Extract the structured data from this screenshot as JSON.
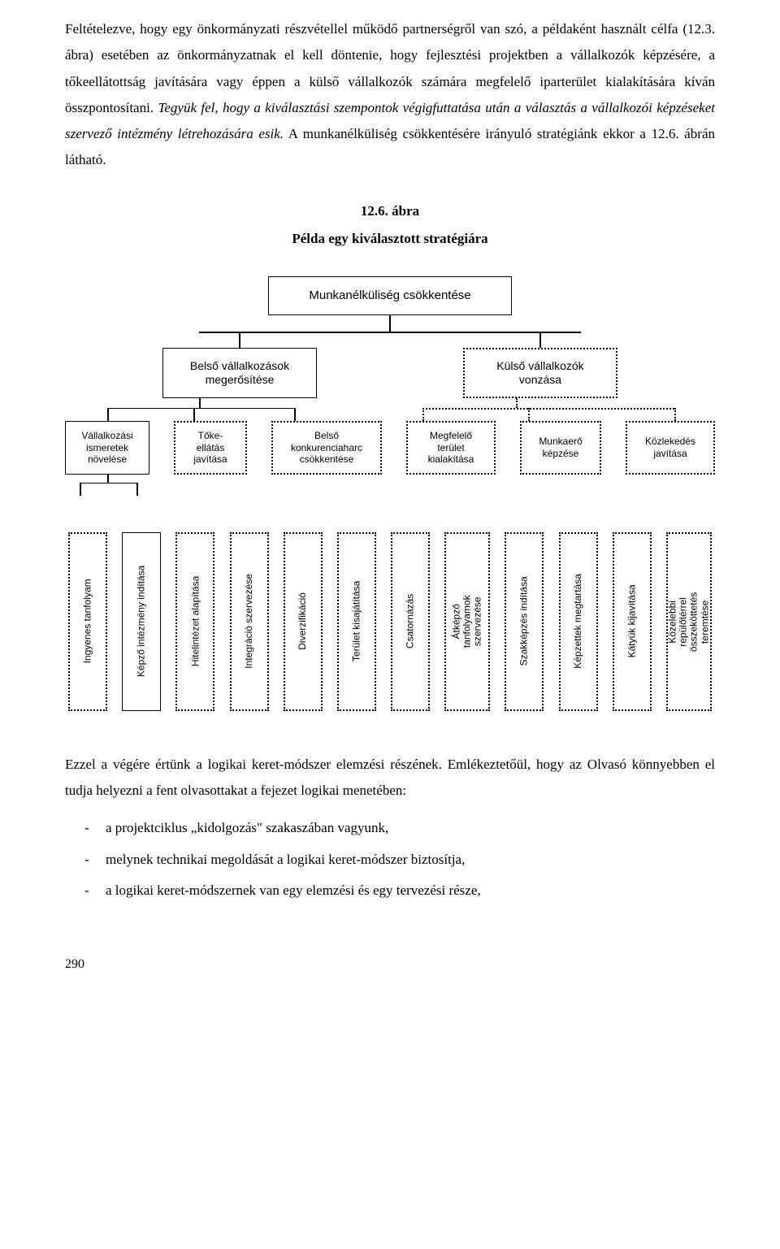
{
  "para1_before_italic": "Feltételezve, hogy egy önkormányzati részvétellel működő partnerségről van szó, a példaként használt célfa (12.3. ábra) esetében az önkormányzatnak el kell döntenie, hogy fejlesztési projektben a vállalkozók képzésére, a tőkeellátottság javítására vagy éppen a külső vállalkozók számára megfelelő iparterület kialakítására kíván összpontosítani. ",
  "para1_italic": "Tegyük fel, hogy a kiválasztási szempontok végigfuttatása után a választás a vállalkozói képzéseket szervező intézmény létrehozására esik.",
  "para1_after_italic": " A munkanélküliség csökkentésére irányuló stratégiánk ekkor a 12.6. ábrán látható.",
  "figure": {
    "number": "12.6. ábra",
    "caption": "Példa egy kiválasztott stratégiára",
    "styling": {
      "font_family": "Arial",
      "box_bg": "#ffffff",
      "border_color": "#000000",
      "solid_border_width": 1.5,
      "dotted_border_width": 2
    },
    "level1": {
      "label": "Munkanélküliség csökkentése",
      "style": "solid"
    },
    "level2": [
      {
        "id": "l2a",
        "label": "Belső vállalkozások megerősítése",
        "style": "solid"
      },
      {
        "id": "l2b",
        "label": "Külső vállalkozók vonzása",
        "style": "dotted"
      }
    ],
    "level3": [
      {
        "id": "l3a",
        "label": "Vállalkozási ismeretek növelése",
        "style": "solid",
        "parent": "l2a"
      },
      {
        "id": "l3b",
        "label": "Tőke-\nellátás javítása",
        "style": "dotted",
        "parent": "l2a"
      },
      {
        "id": "l3c",
        "label": "Belső konkurenciaharc csökkentése",
        "style": "dotted",
        "parent": "l2a"
      },
      {
        "id": "l3d",
        "label": "Megfelelő terület kialakítása",
        "style": "dotted",
        "parent": "l2b"
      },
      {
        "id": "l3e",
        "label": "Munkaerő képzése",
        "style": "dotted",
        "parent": "l2b"
      },
      {
        "id": "l3f",
        "label": "Közlekedés javítása",
        "style": "dotted",
        "parent": "l2b"
      }
    ],
    "level4": [
      {
        "id": "l4a",
        "label": "Ingyenes tanfolyam",
        "style": "dotted",
        "parent": "l3a"
      },
      {
        "id": "l4b",
        "label": "Képző intézmény indítása",
        "style": "solid",
        "parent": "l3a"
      },
      {
        "id": "l4c",
        "label": "Hitelintézet alapítása",
        "style": "dotted",
        "parent": "l3b"
      },
      {
        "id": "l4d",
        "label": "Integráció szervezése",
        "style": "dotted",
        "parent": "l3c"
      },
      {
        "id": "l4e",
        "label": "Diverzifikáció",
        "style": "dotted",
        "parent": "l3c"
      },
      {
        "id": "l4f",
        "label": "Terület kisajátítása",
        "style": "dotted",
        "parent": "l3d"
      },
      {
        "id": "l4g",
        "label": "Csatornázás",
        "style": "dotted",
        "parent": "l3d"
      },
      {
        "id": "l4h",
        "label": "Átképző tanfolyamok szervezése",
        "style": "dotted",
        "parent": "l3e",
        "multiline": true
      },
      {
        "id": "l4i",
        "label": "Szakképzés indítása",
        "style": "dotted",
        "parent": "l3e"
      },
      {
        "id": "l4j",
        "label": "Képzettek megtartása",
        "style": "dotted",
        "parent": "l3e"
      },
      {
        "id": "l4k",
        "label": "Kátyúk kijavítása",
        "style": "dotted",
        "parent": "l3f"
      },
      {
        "id": "l4l",
        "label": "Közelebbi repülőtérrel összeköttetés teremtése",
        "style": "dotted",
        "parent": "l3f",
        "multiline": true
      }
    ]
  },
  "closing_intro": "Ezzel a végére értünk a logikai keret-módszer elemzési részének. Emlékeztetőül, hogy az Olvasó könnyebben el tudja helyezni a fent olvasottakat a fejezet logikai menetében:",
  "bullets": [
    "a projektciklus „kidolgozás\" szakaszában vagyunk,",
    "melynek technikai megoldását a logikai keret-módszer biztosítja,",
    "a logikai keret-módszernek van egy elemzési és egy tervezési része,"
  ],
  "page_number": "290"
}
